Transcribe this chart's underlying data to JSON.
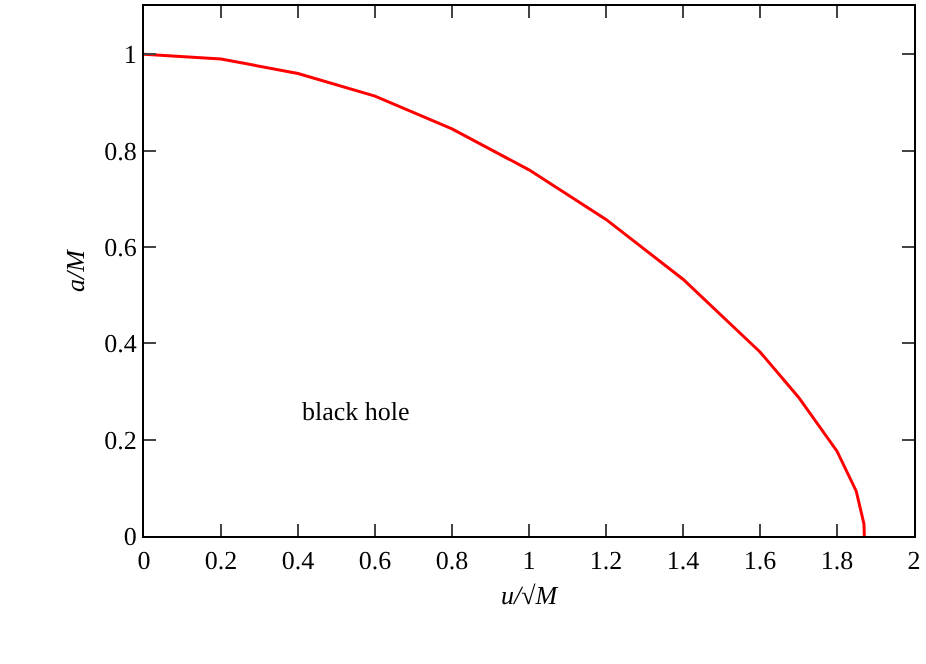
{
  "chart_data": {
    "type": "line",
    "xlabel": "u/√M",
    "ylabel": "a/M",
    "x": [
      0,
      0.2,
      0.4,
      0.6,
      0.8,
      1.0,
      1.2,
      1.4,
      1.6,
      1.7,
      1.8,
      1.85,
      1.87,
      1.871
    ],
    "series": [
      {
        "color": "#ff0000",
        "values": [
          1,
          0.99,
          0.96,
          0.913,
          0.845,
          0.76,
          0.657,
          0.533,
          0.382,
          0.288,
          0.176,
          0.093,
          0.025,
          0
        ]
      }
    ],
    "xlim": [
      0,
      2
    ],
    "xticks": [
      0,
      0.2,
      0.4,
      0.6,
      0.8,
      1,
      1.2,
      1.4,
      1.6,
      1.8,
      2
    ],
    "ylim": [
      0,
      1.1
    ],
    "yticks": [
      0,
      0.2,
      0.4,
      0.6,
      0.8,
      1
    ],
    "annotations": [
      "black hole"
    ],
    "grid": false,
    "marker": "none",
    "line_style": "solid"
  }
}
